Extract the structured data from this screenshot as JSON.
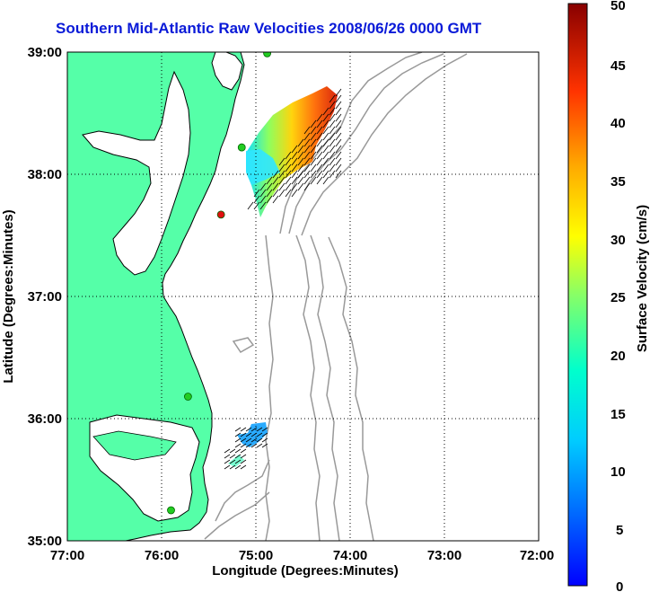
{
  "title": "Southern Mid-Atlantic Raw Velocities 2008/06/26 0000 GMT",
  "xlabel": "Longitude (Degrees:Minutes)",
  "ylabel": "Latitude (Degrees:Minutes)",
  "x_ticks": [
    "77:00",
    "76:00",
    "75:00",
    "74:00",
    "73:00",
    "72:00"
  ],
  "y_ticks": [
    "39:00",
    "38:00",
    "37:00",
    "36:00",
    "35:00"
  ],
  "colorbar": {
    "label": "Surface Velocity (cm/s)",
    "ticks": [
      "0",
      "5",
      "10",
      "15",
      "20",
      "25",
      "30",
      "35",
      "40",
      "45",
      "50"
    ],
    "range": [
      0,
      50
    ],
    "units": "cm/s"
  },
  "colors": {
    "land": "#55ffa8",
    "title": "#0a1ad8",
    "bathymetry": "#999999",
    "site_marker": "#22cc22",
    "site_marker_offline": "#e01010"
  },
  "map": {
    "lon_range": [
      -77,
      -72
    ],
    "lat_range": [
      35,
      39
    ],
    "grid": "dotted",
    "radar_sites": [
      {
        "lon": -75.9,
        "lat": 35.25,
        "status": "online"
      },
      {
        "lon": -75.72,
        "lat": 36.18,
        "status": "online"
      },
      {
        "lon": -75.37,
        "lat": 37.67,
        "status": "offline"
      },
      {
        "lon": -75.15,
        "lat": 38.22,
        "status": "online"
      },
      {
        "lon": -74.88,
        "lat": 38.99,
        "status": "online"
      }
    ]
  }
}
